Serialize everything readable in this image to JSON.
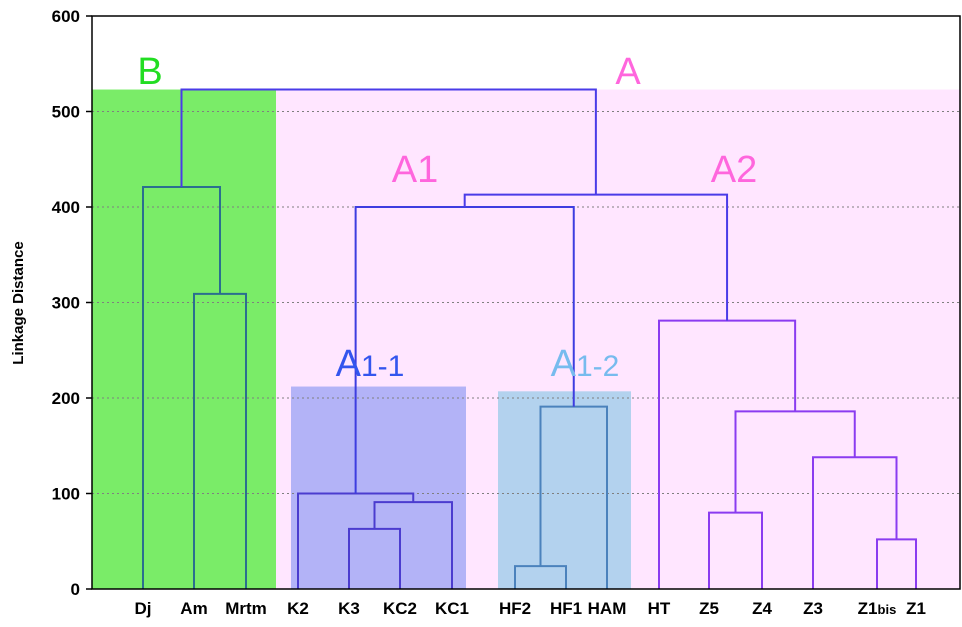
{
  "chart_data": {
    "type": "dendrogram",
    "ylabel": "Linkage Distance",
    "ylim": [
      0,
      600
    ],
    "yticks": [
      0,
      100,
      200,
      300,
      400,
      500,
      600
    ],
    "grid": true,
    "leaves": [
      "Dj",
      "Am",
      "Mrtm",
      "K2",
      "K3",
      "KC2",
      "KC1",
      "HF2",
      "HF1",
      "HAM",
      "HT",
      "Z5",
      "Z4",
      "Z3",
      "Z1bis",
      "Z1"
    ],
    "leaf_display": [
      {
        "main": "Dj",
        "sub": ""
      },
      {
        "main": "Am",
        "sub": ""
      },
      {
        "main": "Mrtm",
        "sub": ""
      },
      {
        "main": "K2",
        "sub": ""
      },
      {
        "main": "K3",
        "sub": ""
      },
      {
        "main": "KC2",
        "sub": ""
      },
      {
        "main": "KC1",
        "sub": ""
      },
      {
        "main": "HF2",
        "sub": ""
      },
      {
        "main": "HF1",
        "sub": ""
      },
      {
        "main": "HAM",
        "sub": ""
      },
      {
        "main": "HT",
        "sub": ""
      },
      {
        "main": "Z5",
        "sub": ""
      },
      {
        "main": "Z4",
        "sub": ""
      },
      {
        "main": "Z3",
        "sub": ""
      },
      {
        "main": "Z1",
        "sub": "bis"
      },
      {
        "main": "Z1",
        "sub": ""
      }
    ],
    "merges": [
      {
        "id": "m1",
        "left": "HF2",
        "right": "HF1",
        "height": 24,
        "color": "#4b82bc"
      },
      {
        "id": "m2",
        "left": "Z1bis",
        "right": "Z1",
        "height": 52,
        "color": "#8a3cf0"
      },
      {
        "id": "m3",
        "left": "K3",
        "right": "KC2",
        "height": 63,
        "color": "#4b3ccf"
      },
      {
        "id": "m4",
        "left": "Z5",
        "right": "Z4",
        "height": 80,
        "color": "#8a3cf0"
      },
      {
        "id": "m5",
        "left": "m3",
        "right": "KC1",
        "height": 91,
        "color": "#4b3ccf"
      },
      {
        "id": "m6",
        "left": "K2",
        "right": "m5",
        "height": 100,
        "color": "#4b3ccf"
      },
      {
        "id": "m7",
        "left": "Z3",
        "right": "m2",
        "height": 138,
        "color": "#8a3cf0"
      },
      {
        "id": "m8",
        "left": "m4",
        "right": "m7",
        "height": 186,
        "color": "#8a3cf0"
      },
      {
        "id": "m9",
        "left": "m1",
        "right": "HAM",
        "height": 191,
        "color": "#4b82bc"
      },
      {
        "id": "m10",
        "left": "HT",
        "right": "m8",
        "height": 281,
        "color": "#8a3cf0"
      },
      {
        "id": "m11",
        "left": "Am",
        "right": "Mrtm",
        "height": 309,
        "color": "#2b6f8f"
      },
      {
        "id": "m12",
        "left": "m6",
        "right": "m9",
        "height": 400,
        "color": "#3d3de0"
      },
      {
        "id": "m13",
        "left": "m12",
        "right": "m10",
        "height": 413,
        "color": "#4a3be8"
      },
      {
        "id": "m14",
        "left": "Dj",
        "right": "m11",
        "height": 421,
        "color": "#2b6f8f"
      },
      {
        "id": "m15",
        "left": "m14",
        "right": "m13",
        "height": 523,
        "color": "#4a3be8"
      }
    ],
    "annotations": [
      {
        "text": "B",
        "sub": "",
        "color": "#22dd22"
      },
      {
        "text": "A",
        "sub": "",
        "color": "#ff66dd"
      },
      {
        "text": "A1",
        "sub": "",
        "color": "#ff66dd"
      },
      {
        "text": "A2",
        "sub": "",
        "color": "#ff66dd"
      },
      {
        "text": "A",
        "sub": "1-1",
        "color": "#3355ee"
      },
      {
        "text": "A",
        "sub": "1-2",
        "color": "#77bbee"
      }
    ],
    "regions": [
      {
        "label": "B",
        "from": "Dj",
        "to": "Mrtm",
        "top": 523,
        "color": "#7aec68"
      },
      {
        "label": "A",
        "from": "K2",
        "to": "Z1",
        "top": 523,
        "color": "#ffe6ff"
      },
      {
        "label": "A1-1",
        "from": "K2",
        "to": "KC1",
        "top": 212,
        "color": "#b3b3f7"
      },
      {
        "label": "A1-2",
        "from": "HF2",
        "to": "HAM",
        "top": 207,
        "color": "#b3d2ee"
      }
    ]
  }
}
